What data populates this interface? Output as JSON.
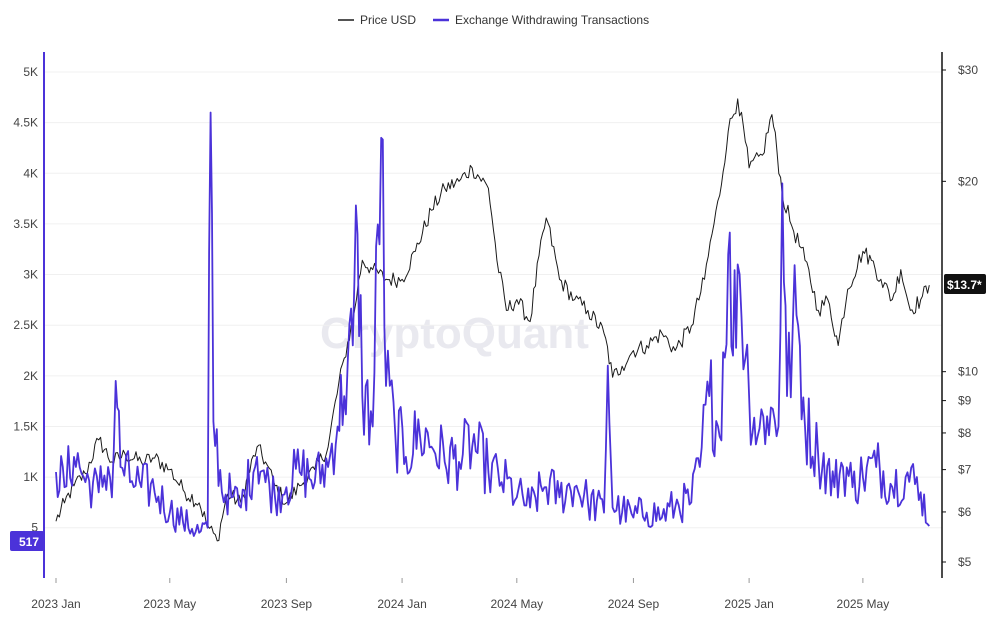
{
  "legend": {
    "price_label": "Price USD",
    "withdraw_label": "Exchange Withdrawing Transactions"
  },
  "watermark": "CryptoQuant",
  "colors": {
    "price": "#1a1a1a",
    "withdraw": "#4b32d9",
    "badge_price_bg": "#111111",
    "badge_withdraw_bg": "#4b32d9",
    "grid": "#f0f0f0"
  },
  "badges": {
    "price_value": "$13.7*",
    "withdraw_value": "517"
  },
  "chart_data": {
    "type": "line",
    "x_range": [
      "2023-01-01",
      "2025-07-15"
    ],
    "x_tick_labels": [
      "2023 Jan",
      "2023 May",
      "2023 Sep",
      "2024 Jan",
      "2024 May",
      "2024 Sep",
      "2025 Jan",
      "2025 May"
    ],
    "left_axis": {
      "label": "",
      "range": [
        300,
        5000
      ],
      "tick_labels": [
        "5",
        "1K",
        "1.5K",
        "2K",
        "2.5K",
        "3K",
        "3.5K",
        "4K",
        "4.5K",
        "5K"
      ]
    },
    "right_axis": {
      "label": "",
      "scale": "log",
      "range": [
        5,
        30
      ],
      "tick_labels": [
        "$5",
        "$6",
        "$7",
        "$8",
        "$9",
        "$10",
        "$20",
        "$30"
      ]
    },
    "series": [
      {
        "name": "Price USD",
        "axis": "right",
        "points": [
          [
            "2023-01-01",
            5.8
          ],
          [
            "2023-01-10",
            6.2
          ],
          [
            "2023-01-20",
            6.6
          ],
          [
            "2023-02-01",
            6.9
          ],
          [
            "2023-02-15",
            7.8
          ],
          [
            "2023-03-01",
            7.2
          ],
          [
            "2023-03-15",
            7.4
          ],
          [
            "2023-04-01",
            7.2
          ],
          [
            "2023-04-15",
            7.3
          ],
          [
            "2023-05-01",
            7.0
          ],
          [
            "2023-05-15",
            6.5
          ],
          [
            "2023-06-01",
            6.2
          ],
          [
            "2023-06-10",
            5.7
          ],
          [
            "2023-06-20",
            5.4
          ],
          [
            "2023-07-01",
            6.4
          ],
          [
            "2023-07-15",
            6.2
          ],
          [
            "2023-08-01",
            7.6
          ],
          [
            "2023-08-10",
            7.2
          ],
          [
            "2023-08-20",
            6.6
          ],
          [
            "2023-09-01",
            6.2
          ],
          [
            "2023-09-15",
            6.6
          ],
          [
            "2023-10-01",
            7.0
          ],
          [
            "2023-10-15",
            7.6
          ],
          [
            "2023-11-01",
            10.5
          ],
          [
            "2023-11-10",
            12.0
          ],
          [
            "2023-11-20",
            15.0
          ],
          [
            "2023-12-01",
            14.5
          ],
          [
            "2023-12-15",
            14.0
          ],
          [
            "2024-01-01",
            14.0
          ],
          [
            "2024-01-15",
            15.5
          ],
          [
            "2024-02-01",
            18.0
          ],
          [
            "2024-02-15",
            19.5
          ],
          [
            "2024-03-01",
            20.0
          ],
          [
            "2024-03-15",
            21.0
          ],
          [
            "2024-04-01",
            19.5
          ],
          [
            "2024-04-10",
            15.0
          ],
          [
            "2024-04-20",
            12.5
          ],
          [
            "2024-05-01",
            13.0
          ],
          [
            "2024-05-15",
            12.0
          ],
          [
            "2024-06-01",
            17.5
          ],
          [
            "2024-06-15",
            14.0
          ],
          [
            "2024-07-01",
            13.0
          ],
          [
            "2024-07-15",
            12.5
          ],
          [
            "2024-08-01",
            11.5
          ],
          [
            "2024-08-10",
            9.8
          ],
          [
            "2024-08-20",
            10.2
          ],
          [
            "2024-09-01",
            10.8
          ],
          [
            "2024-09-15",
            11.0
          ],
          [
            "2024-10-01",
            11.5
          ],
          [
            "2024-10-15",
            10.8
          ],
          [
            "2024-11-01",
            11.8
          ],
          [
            "2024-11-15",
            14.0
          ],
          [
            "2024-12-01",
            19.0
          ],
          [
            "2024-12-10",
            24.0
          ],
          [
            "2024-12-20",
            27.0
          ],
          [
            "2025-01-01",
            21.0
          ],
          [
            "2025-01-15",
            22.0
          ],
          [
            "2025-01-25",
            25.5
          ],
          [
            "2025-02-05",
            19.0
          ],
          [
            "2025-02-15",
            17.0
          ],
          [
            "2025-03-01",
            15.0
          ],
          [
            "2025-03-15",
            12.5
          ],
          [
            "2025-03-25",
            13.0
          ],
          [
            "2025-04-05",
            11.0
          ],
          [
            "2025-04-15",
            13.5
          ],
          [
            "2025-05-01",
            15.5
          ],
          [
            "2025-05-10",
            15.0
          ],
          [
            "2025-05-20",
            14.0
          ],
          [
            "2025-06-01",
            13.0
          ],
          [
            "2025-06-10",
            14.5
          ],
          [
            "2025-06-20",
            12.5
          ],
          [
            "2025-07-01",
            13.0
          ],
          [
            "2025-07-10",
            13.7
          ]
        ]
      },
      {
        "name": "Exchange Withdrawing Transactions",
        "axis": "left",
        "points": [
          [
            "2023-01-01",
            1050
          ],
          [
            "2023-01-10",
            900
          ],
          [
            "2023-01-20",
            1200
          ],
          [
            "2023-02-01",
            950
          ],
          [
            "2023-02-15",
            850
          ],
          [
            "2023-02-25",
            1100
          ],
          [
            "2023-03-01",
            800
          ],
          [
            "2023-03-05",
            1950
          ],
          [
            "2023-03-10",
            1100
          ],
          [
            "2023-03-20",
            950
          ],
          [
            "2023-04-01",
            900
          ],
          [
            "2023-04-15",
            850
          ],
          [
            "2023-05-01",
            650
          ],
          [
            "2023-05-15",
            550
          ],
          [
            "2023-06-01",
            450
          ],
          [
            "2023-06-10",
            500
          ],
          [
            "2023-06-13",
            4600
          ],
          [
            "2023-06-16",
            1550
          ],
          [
            "2023-06-25",
            850
          ],
          [
            "2023-07-05",
            800
          ],
          [
            "2023-07-15",
            700
          ],
          [
            "2023-08-01",
            1200
          ],
          [
            "2023-08-10",
            950
          ],
          [
            "2023-08-20",
            800
          ],
          [
            "2023-09-01",
            900
          ],
          [
            "2023-09-15",
            1050
          ],
          [
            "2023-10-01",
            950
          ],
          [
            "2023-10-15",
            1100
          ],
          [
            "2023-10-25",
            1500
          ],
          [
            "2023-11-01",
            1800
          ],
          [
            "2023-11-10",
            2300
          ],
          [
            "2023-11-15",
            3400
          ],
          [
            "2023-11-20",
            1800
          ],
          [
            "2023-12-01",
            1500
          ],
          [
            "2023-12-10",
            4350
          ],
          [
            "2023-12-15",
            1900
          ],
          [
            "2023-12-25",
            1400
          ],
          [
            "2024-01-05",
            1200
          ],
          [
            "2024-01-20",
            1400
          ],
          [
            "2024-02-01",
            1300
          ],
          [
            "2024-02-15",
            1150
          ],
          [
            "2024-03-01",
            1150
          ],
          [
            "2024-03-15",
            1300
          ],
          [
            "2024-04-01",
            1050
          ],
          [
            "2024-04-15",
            950
          ],
          [
            "2024-05-01",
            800
          ],
          [
            "2024-05-15",
            700
          ],
          [
            "2024-06-01",
            900
          ],
          [
            "2024-06-15",
            800
          ],
          [
            "2024-07-01",
            900
          ],
          [
            "2024-07-15",
            750
          ],
          [
            "2024-08-01",
            650
          ],
          [
            "2024-08-05",
            2100
          ],
          [
            "2024-08-10",
            700
          ],
          [
            "2024-08-20",
            650
          ],
          [
            "2024-09-01",
            600
          ],
          [
            "2024-09-15",
            650
          ],
          [
            "2024-10-01",
            600
          ],
          [
            "2024-10-15",
            700
          ],
          [
            "2024-11-01",
            750
          ],
          [
            "2024-11-10",
            1100
          ],
          [
            "2024-11-20",
            1800
          ],
          [
            "2024-12-01",
            1400
          ],
          [
            "2024-12-10",
            3200
          ],
          [
            "2024-12-15",
            2200
          ],
          [
            "2024-12-20",
            3100
          ],
          [
            "2025-01-01",
            1800
          ],
          [
            "2025-01-10",
            1400
          ],
          [
            "2025-01-20",
            1600
          ],
          [
            "2025-02-01",
            1500
          ],
          [
            "2025-02-05",
            3900
          ],
          [
            "2025-02-10",
            1800
          ],
          [
            "2025-02-20",
            2600
          ],
          [
            "2025-03-01",
            1500
          ],
          [
            "2025-03-15",
            1200
          ],
          [
            "2025-04-01",
            900
          ],
          [
            "2025-04-10",
            1100
          ],
          [
            "2025-04-20",
            900
          ],
          [
            "2025-05-01",
            1000
          ],
          [
            "2025-05-15",
            1100
          ],
          [
            "2025-06-01",
            900
          ],
          [
            "2025-06-15",
            1000
          ],
          [
            "2025-07-01",
            850
          ],
          [
            "2025-07-10",
            517
          ]
        ]
      }
    ]
  }
}
